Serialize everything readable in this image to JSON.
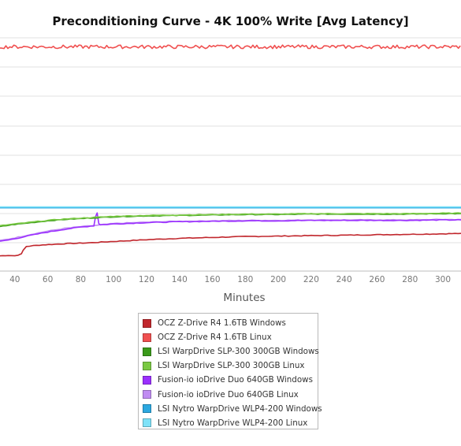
{
  "chart_data": {
    "type": "line",
    "title": "Preconditioning Curve - 4K 100% Write [Avg Latency]",
    "xlabel": "Minutes",
    "ylabel": "",
    "x_ticks": [
      "40",
      "60",
      "80",
      "100",
      "120",
      "140",
      "160",
      "180",
      "200",
      "220",
      "240",
      "260",
      "280",
      "300"
    ],
    "xlim": [
      31,
      311
    ],
    "grid": true,
    "legend_position": "bottom-center",
    "series": [
      {
        "name": "OCZ Z-Drive R4 1.6TB Windows",
        "color": "#c1272d",
        "x": [
          31,
          36,
          40,
          44,
          45,
          47,
          55,
          70,
          85,
          100,
          120,
          140,
          160,
          180,
          200,
          220,
          240,
          260,
          280,
          300,
          311
        ],
        "y": [
          34,
          35,
          34,
          38,
          46,
          55,
          58,
          61,
          63,
          66,
          70,
          73,
          75,
          77,
          78,
          79,
          80,
          81,
          82,
          83,
          84
        ]
      },
      {
        "name": "OCZ Z-Drive R4 1.6TB Linux",
        "color": "#f05050",
        "x": [
          31,
          311
        ],
        "y": [
          500,
          500
        ],
        "jitter": 4
      },
      {
        "name": "LSI WarpDrive SLP-300 300GB Windows",
        "color": "#3a9a1a",
        "x": [
          31,
          40,
          50,
          60,
          70,
          80,
          90,
          100,
          120,
          140,
          160,
          180,
          200,
          220,
          240,
          260,
          280,
          300,
          311
        ],
        "y": [
          99,
          104,
          108,
          112,
          115,
          117,
          119,
          121,
          123,
          124,
          125,
          126,
          126,
          127,
          127,
          127,
          127,
          128,
          128
        ]
      },
      {
        "name": "LSI WarpDrive SLP-300 300GB Linux",
        "color": "#7ac943",
        "x": [
          31,
          40,
          50,
          60,
          70,
          80,
          90,
          100,
          120,
          140,
          160,
          180,
          200,
          220,
          240,
          260,
          280,
          300,
          311
        ],
        "y": [
          101,
          105,
          109,
          113,
          116,
          118,
          120,
          122,
          124,
          125,
          126,
          127,
          127,
          128,
          128,
          128,
          128,
          129,
          129
        ]
      },
      {
        "name": "Fusion-io ioDrive Duo 640GB Windows",
        "color": "#9b30ff",
        "x": [
          31,
          40,
          50,
          60,
          70,
          80,
          88,
          89,
          90,
          91,
          92,
          100,
          120,
          140,
          160,
          180,
          200,
          220,
          240,
          260,
          280,
          300,
          311
        ],
        "y": [
          66,
          72,
          80,
          87,
          93,
          98,
          101,
          121,
          130,
          106,
          103,
          105,
          108,
          110,
          111,
          112,
          112,
          113,
          113,
          113,
          113,
          114,
          114
        ]
      },
      {
        "name": "Fusion-io ioDrive Duo 640GB Linux",
        "color": "#c08cf2",
        "x": [
          31,
          40,
          50,
          60,
          70,
          80,
          90,
          100,
          120,
          140,
          160,
          180,
          200,
          220,
          240,
          260,
          280,
          300,
          311
        ],
        "y": [
          68,
          74,
          82,
          89,
          95,
          99,
          102,
          106,
          109,
          111,
          112,
          113,
          113,
          114,
          114,
          114,
          114,
          115,
          115
        ]
      },
      {
        "name": "LSI Nytro WarpDrive WLP4-200 Windows",
        "color": "#2ba8e0",
        "x": [
          31,
          311
        ],
        "y": [
          141,
          141
        ]
      },
      {
        "name": "LSI Nytro WarpDrive WLP4-200 Linux",
        "color": "#7ee2f8",
        "x": [
          31,
          311
        ],
        "y": [
          143,
          143
        ]
      }
    ]
  }
}
